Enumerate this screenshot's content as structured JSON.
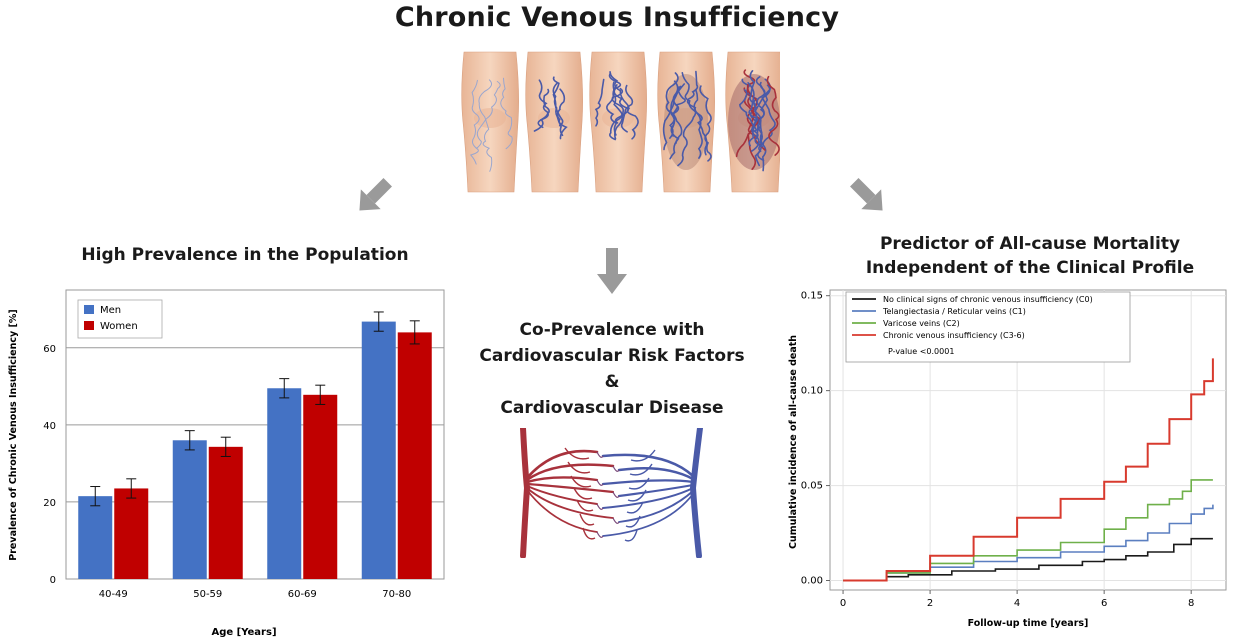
{
  "title": "Chronic Venous Insufficiency",
  "sections": {
    "prevalence_title": "High Prevalence in the Population",
    "co_prevalence_lines": [
      "Co-Prevalence with",
      "Cardiovascular Risk Factors",
      "&",
      "Cardiovascular Disease"
    ],
    "mortality_title_lines": [
      "Predictor of All-cause Mortality",
      "Independent of the Clinical Profile"
    ]
  },
  "colors": {
    "men": "#4472c4",
    "women": "#c00000",
    "arrow": "#9a9a9a",
    "skin": "#f1c9ab",
    "vein_blue": "#4a5aa8",
    "vein_red": "#a8323c",
    "km_c0": "#1a1a1a",
    "km_c1": "#5b7fc0",
    "km_c2": "#6fb04a",
    "km_c3": "#d83a2e"
  },
  "icons": [
    "leg-illustration",
    "arrow-down-left-icon",
    "arrow-down-icon",
    "arrow-down-right-icon",
    "vascular-network-illustration"
  ],
  "chart_data": [
    {
      "type": "bar",
      "title": "High Prevalence in the Population",
      "xlabel": "Age [Years]",
      "ylabel": "Prevalence of Chronic Venous Insufficiency [%]",
      "categories": [
        "40-49",
        "50-59",
        "60-69",
        "70-80"
      ],
      "ylim": [
        0,
        75
      ],
      "yticks": [
        0,
        20,
        40,
        60
      ],
      "grid": true,
      "legend": "top-left",
      "series": [
        {
          "name": "Men",
          "values": [
            21.5,
            36.0,
            49.5,
            66.8
          ],
          "error": [
            2.5,
            2.5,
            2.5,
            2.5
          ]
        },
        {
          "name": "Women",
          "values": [
            23.5,
            34.3,
            47.8,
            64.0
          ],
          "error": [
            2.5,
            2.5,
            2.5,
            3.0
          ]
        }
      ]
    },
    {
      "type": "line",
      "title": "Predictor of All-cause Mortality Independent of the Clinical Profile",
      "xlabel": "Follow-up time [years]",
      "ylabel": "Cumulative incidence of all-cause death",
      "xlim": [
        -0.3,
        8.8
      ],
      "ylim": [
        -0.005,
        0.153
      ],
      "xticks": [
        0,
        2,
        4,
        6,
        8
      ],
      "yticks": [
        "0.00",
        "0.05",
        "0.10",
        "0.15"
      ],
      "grid": true,
      "legend": "top-left",
      "annotation": "P-value <0.0001",
      "series": [
        {
          "name": "No clinical signs of chronic venous insufficiency (C0)",
          "x": [
            0,
            1,
            1.5,
            2.5,
            3.5,
            4.5,
            5.5,
            6.0,
            6.5,
            7.0,
            7.3,
            7.6,
            8.0,
            8.5
          ],
          "y": [
            0,
            0.002,
            0.003,
            0.005,
            0.006,
            0.008,
            0.01,
            0.011,
            0.013,
            0.015,
            0.015,
            0.019,
            0.022,
            0.022
          ]
        },
        {
          "name": "Telangiectasia / Reticular veins (C1)",
          "x": [
            0,
            1,
            2,
            3,
            4,
            5,
            6,
            6.5,
            7,
            7.5,
            8.0,
            8.3,
            8.5
          ],
          "y": [
            0,
            0.004,
            0.007,
            0.01,
            0.012,
            0.015,
            0.018,
            0.021,
            0.025,
            0.03,
            0.035,
            0.038,
            0.04
          ]
        },
        {
          "name": "Varicose veins (C2)",
          "x": [
            0,
            1,
            2,
            3,
            4,
            5,
            6,
            6.5,
            7,
            7.5,
            7.8,
            8.0,
            8.5
          ],
          "y": [
            0,
            0.004,
            0.009,
            0.013,
            0.016,
            0.02,
            0.027,
            0.033,
            0.04,
            0.043,
            0.047,
            0.053,
            0.053
          ]
        },
        {
          "name": "Chronic venous insufficiency (C3-6)",
          "x": [
            0,
            1,
            2,
            3,
            4,
            5,
            6,
            6.5,
            7,
            7.5,
            8.0,
            8.3,
            8.5
          ],
          "y": [
            0,
            0.005,
            0.013,
            0.023,
            0.033,
            0.043,
            0.052,
            0.06,
            0.072,
            0.085,
            0.098,
            0.105,
            0.117
          ]
        }
      ]
    }
  ]
}
